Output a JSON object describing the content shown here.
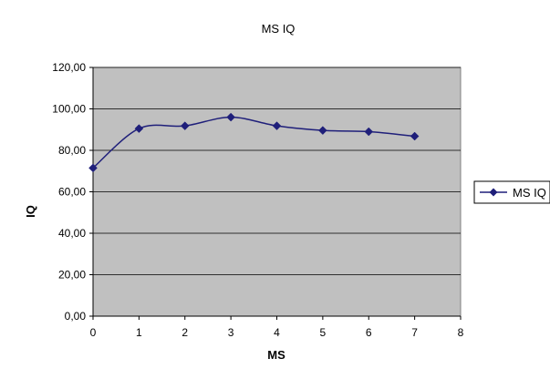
{
  "chart_data": {
    "type": "line",
    "title": "MS IQ",
    "xlabel": "MS",
    "ylabel": "IQ",
    "xlim": [
      0,
      8
    ],
    "ylim": [
      0,
      120
    ],
    "x_ticks": [
      0,
      1,
      2,
      3,
      4,
      5,
      6,
      7,
      8
    ],
    "y_ticks": [
      0,
      20,
      40,
      60,
      80,
      100,
      120
    ],
    "x_tick_labels": [
      "0",
      "1",
      "2",
      "3",
      "4",
      "5",
      "6",
      "7",
      "8"
    ],
    "y_tick_labels": [
      "0,00",
      "20,00",
      "40,00",
      "60,00",
      "80,00",
      "100,00",
      "120,00"
    ],
    "grid": true,
    "plot_background": "#c0c0c0",
    "legend_position": "right",
    "series": [
      {
        "name": "MS IQ",
        "color": "#1f1f7a",
        "marker": "diamond",
        "x": [
          0,
          1,
          2,
          3,
          4,
          5,
          6,
          7
        ],
        "y": [
          71.5,
          90.5,
          91.8,
          96.0,
          91.8,
          89.6,
          89.0,
          86.8
        ]
      }
    ]
  }
}
